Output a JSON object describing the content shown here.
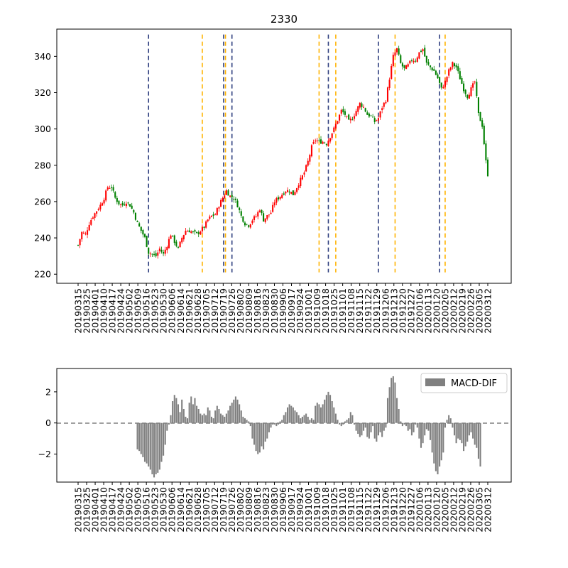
{
  "chart_data": [
    {
      "type": "candlestick",
      "title": "2330",
      "xlabel": "",
      "ylabel": "",
      "ylim": [
        215,
        355
      ],
      "yticks": [
        220,
        240,
        260,
        280,
        300,
        320,
        340
      ],
      "x_tick_labels": [
        "20190315",
        "20190325",
        "20190401",
        "20190410",
        "20190417",
        "20190424",
        "20190502",
        "20190509",
        "20190516",
        "20190523",
        "20190530",
        "20190606",
        "20190614",
        "20190621",
        "20190628",
        "20190705",
        "20190712",
        "20190719",
        "20190726",
        "20190802",
        "20190809",
        "20190816",
        "20190823",
        "20190830",
        "20190906",
        "20190917",
        "20190924",
        "20191001",
        "20191009",
        "20191018",
        "20191025",
        "20191101",
        "20191108",
        "20191115",
        "20191122",
        "20191129",
        "20191206",
        "20191213",
        "20191220",
        "20191227",
        "20200106",
        "20200113",
        "20200120",
        "20200205",
        "20200212",
        "20200219",
        "20200226",
        "20200305",
        "20200312"
      ],
      "colors": {
        "up": "#ff0000",
        "down": "#008000",
        "vline_blue": "#2f3f7f",
        "vline_orange": "#ffb300"
      },
      "close_path": [
        [
          0,
          236
        ],
        [
          2,
          243
        ],
        [
          4,
          242
        ],
        [
          6,
          248
        ],
        [
          8,
          252
        ],
        [
          10,
          255
        ],
        [
          12,
          258
        ],
        [
          14,
          262
        ],
        [
          16,
          268
        ],
        [
          18,
          268
        ],
        [
          20,
          262
        ],
        [
          22,
          259
        ],
        [
          24,
          258
        ],
        [
          26,
          260
        ],
        [
          28,
          258
        ],
        [
          30,
          254
        ],
        [
          32,
          248
        ],
        [
          34,
          244
        ],
        [
          36,
          240
        ],
        [
          38,
          232
        ],
        [
          40,
          231
        ],
        [
          42,
          230
        ],
        [
          44,
          234
        ],
        [
          46,
          231
        ],
        [
          48,
          236
        ],
        [
          50,
          242
        ],
        [
          52,
          238
        ],
        [
          54,
          234
        ],
        [
          56,
          240
        ],
        [
          58,
          244
        ],
        [
          60,
          244
        ],
        [
          62,
          243
        ],
        [
          64,
          242
        ],
        [
          66,
          244
        ],
        [
          68,
          246
        ],
        [
          70,
          250
        ],
        [
          72,
          252
        ],
        [
          74,
          253
        ],
        [
          76,
          258
        ],
        [
          78,
          262
        ],
        [
          80,
          266
        ],
        [
          82,
          263
        ],
        [
          84,
          262
        ],
        [
          86,
          258
        ],
        [
          88,
          252
        ],
        [
          90,
          248
        ],
        [
          92,
          247
        ],
        [
          94,
          250
        ],
        [
          96,
          252
        ],
        [
          98,
          256
        ],
        [
          100,
          250
        ],
        [
          102,
          252
        ],
        [
          104,
          254
        ],
        [
          106,
          260
        ],
        [
          108,
          262
        ],
        [
          110,
          264
        ],
        [
          112,
          266
        ],
        [
          114,
          266
        ],
        [
          116,
          264
        ],
        [
          118,
          268
        ],
        [
          120,
          272
        ],
        [
          122,
          276
        ],
        [
          124,
          282
        ],
        [
          126,
          290
        ],
        [
          128,
          294
        ],
        [
          130,
          293
        ],
        [
          132,
          293
        ],
        [
          134,
          292
        ],
        [
          136,
          296
        ],
        [
          138,
          300
        ],
        [
          140,
          305
        ],
        [
          142,
          310
        ],
        [
          144,
          308
        ],
        [
          146,
          304
        ],
        [
          148,
          306
        ],
        [
          150,
          310
        ],
        [
          152,
          314
        ],
        [
          154,
          312
        ],
        [
          156,
          308
        ],
        [
          158,
          307
        ],
        [
          160,
          304
        ],
        [
          162,
          306
        ],
        [
          164,
          312
        ],
        [
          166,
          316
        ],
        [
          168,
          328
        ],
        [
          170,
          340
        ],
        [
          172,
          344
        ],
        [
          174,
          336
        ],
        [
          176,
          333
        ],
        [
          178,
          335
        ],
        [
          180,
          338
        ],
        [
          182,
          338
        ],
        [
          184,
          342
        ],
        [
          186,
          344
        ],
        [
          188,
          336
        ],
        [
          190,
          334
        ],
        [
          192,
          332
        ],
        [
          194,
          328
        ],
        [
          196,
          322
        ],
        [
          198,
          326
        ],
        [
          200,
          332
        ],
        [
          202,
          336
        ],
        [
          204,
          334
        ],
        [
          206,
          328
        ],
        [
          208,
          322
        ],
        [
          210,
          318
        ],
        [
          212,
          322
        ],
        [
          214,
          326
        ],
        [
          216,
          308
        ],
        [
          218,
          302
        ],
        [
          220,
          282
        ],
        [
          221,
          275
        ]
      ],
      "vlines": [
        {
          "x": 38,
          "color": "blue"
        },
        {
          "x": 67,
          "color": "orange"
        },
        {
          "x": 78.5,
          "color": "blue"
        },
        {
          "x": 79.5,
          "color": "orange"
        },
        {
          "x": 83,
          "color": "blue"
        },
        {
          "x": 130,
          "color": "orange"
        },
        {
          "x": 135,
          "color": "blue"
        },
        {
          "x": 139,
          "color": "orange"
        },
        {
          "x": 162,
          "color": "blue"
        },
        {
          "x": 171,
          "color": "orange"
        },
        {
          "x": 195,
          "color": "blue"
        },
        {
          "x": 198,
          "color": "orange"
        }
      ]
    },
    {
      "type": "bar",
      "title": "",
      "legend": [
        "MACD-DIF"
      ],
      "legend_position": "top-right",
      "ylim": [
        -3.8,
        3.5
      ],
      "yticks": [
        -2,
        0,
        2
      ],
      "x_tick_labels": [
        "20190315",
        "20190325",
        "20190401",
        "20190410",
        "20190417",
        "20190424",
        "20190502",
        "20190509",
        "20190516",
        "20190523",
        "20190530",
        "20190606",
        "20190614",
        "20190621",
        "20190628",
        "20190705",
        "20190712",
        "20190719",
        "20190726",
        "20190802",
        "20190809",
        "20190816",
        "20190823",
        "20190830",
        "20190906",
        "20190917",
        "20190924",
        "20191001",
        "20191009",
        "20191018",
        "20191025",
        "20191101",
        "20191108",
        "20191115",
        "20191122",
        "20191129",
        "20191206",
        "20191213",
        "20191220",
        "20191227",
        "20200106",
        "20200113",
        "20200120",
        "20200205",
        "20200212",
        "20200219",
        "20200226",
        "20200305",
        "20200312"
      ],
      "colors": {
        "bar": "#808080",
        "zero_line": "#808080"
      },
      "series": [
        {
          "name": "MACD-DIF",
          "values": [
            0,
            0,
            0,
            0,
            0,
            0,
            0,
            0,
            0,
            0,
            0,
            0,
            0,
            0,
            0,
            0,
            0,
            0,
            0,
            0,
            0,
            0,
            0,
            0,
            0,
            0,
            0,
            0,
            0,
            0,
            0,
            0,
            -1.7,
            -1.8,
            -2.0,
            -2.2,
            -2.5,
            -2.6,
            -2.8,
            -3.0,
            -3.3,
            -3.5,
            -3.3,
            -3.2,
            -3.0,
            -2.5,
            -2.1,
            -1.4,
            -0.5,
            -0.1,
            0.5,
            1.4,
            1.8,
            1.6,
            1.2,
            0.7,
            1.5,
            0.9,
            0.4,
            0.3,
            1.3,
            1.7,
            1.2,
            1.6,
            1.1,
            0.9,
            0.6,
            0.5,
            0.6,
            0.5,
            1.0,
            0.8,
            0.4,
            0.3,
            0.8,
            1.1,
            0.9,
            0.6,
            0.5,
            0.4,
            0.6,
            0.8,
            1.1,
            1.3,
            1.5,
            1.7,
            1.5,
            1.2,
            0.8,
            0.4,
            0.3,
            0.2,
            0.1,
            -0.2,
            -1.0,
            -1.4,
            -1.8,
            -2.0,
            -1.9,
            -1.5,
            -1.7,
            -1.2,
            -1.0,
            -0.6,
            -0.3,
            -0.1,
            -0.1,
            -0.2,
            -0.1,
            0.1,
            0.2,
            0.5,
            0.7,
            1.0,
            1.2,
            1.1,
            1.0,
            0.8,
            0.7,
            0.5,
            0.3,
            0.4,
            0.5,
            0.6,
            0.4,
            0.2,
            0.3,
            0.2,
            1.1,
            1.3,
            1.2,
            1.0,
            1.2,
            1.5,
            1.8,
            2.0,
            1.8,
            1.4,
            1.0,
            0.6,
            0.2,
            -0.1,
            -0.2,
            -0.1,
            0.1,
            0.2,
            0.3,
            0.7,
            0.5,
            -0.1,
            -0.5,
            -0.7,
            -0.9,
            -0.8,
            -0.5,
            -0.3,
            -0.9,
            -1.0,
            -0.6,
            -0.2,
            -1.0,
            -1.2,
            -0.8,
            -0.6,
            -0.9,
            -0.5,
            -0.3,
            1.6,
            2.3,
            2.9,
            3.0,
            2.6,
            1.6,
            0.9,
            0.1,
            -0.2,
            -0.1,
            -0.2,
            -0.5,
            -0.4,
            -0.8,
            -0.6,
            -0.1,
            -0.3,
            -1.0,
            -1.6,
            -1.3,
            -0.8,
            -0.4,
            -0.5,
            -1.1,
            -1.9,
            -2.6,
            -3.1,
            -3.3,
            -2.8,
            -2.4,
            -1.9,
            -0.3,
            0.2,
            0.5,
            0.3,
            -0.3,
            -0.8,
            -1.3,
            -1.0,
            -1.1,
            -1.3,
            -1.8,
            -1.5,
            -1.2,
            -0.8,
            -0.6,
            -1.0,
            -1.4,
            -1.6,
            -2.3,
            -2.8
          ]
        }
      ]
    }
  ]
}
